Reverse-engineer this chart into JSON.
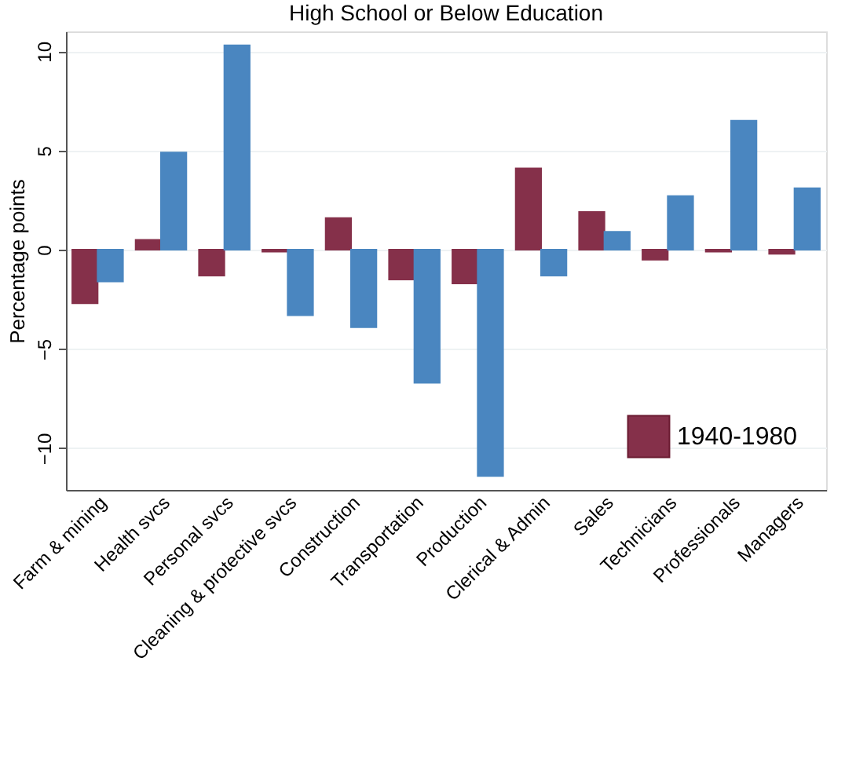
{
  "chart_data": {
    "type": "bar",
    "title": "High School or Below Education",
    "ylabel": "Percentage points",
    "categories": [
      "Farm & mining",
      "Health svcs",
      "Personal svcs",
      "Cleaning & protective svcs",
      "Construction",
      "Transportation",
      "Production",
      "Clerical & Admin",
      "Sales",
      "Technicians",
      "Professionals",
      "Managers"
    ],
    "series": [
      {
        "name": "1940-1980",
        "color": "#85304a",
        "values": [
          -2.7,
          0.5,
          -1.3,
          -0.1,
          1.6,
          -1.5,
          -1.7,
          4.1,
          1.9,
          -0.5,
          -0.1,
          -0.2
        ]
      },
      {
        "color": "#4a86c0",
        "values": [
          -1.6,
          4.9,
          10.3,
          -3.3,
          -3.9,
          -6.7,
          -11.4,
          -1.3,
          0.9,
          2.7,
          6.5,
          3.1
        ]
      }
    ],
    "ylim": [
      -12.1,
      11
    ],
    "yticks": [
      -10,
      -5,
      0,
      5,
      10
    ],
    "grid": "y",
    "legend": "bottom right"
  }
}
